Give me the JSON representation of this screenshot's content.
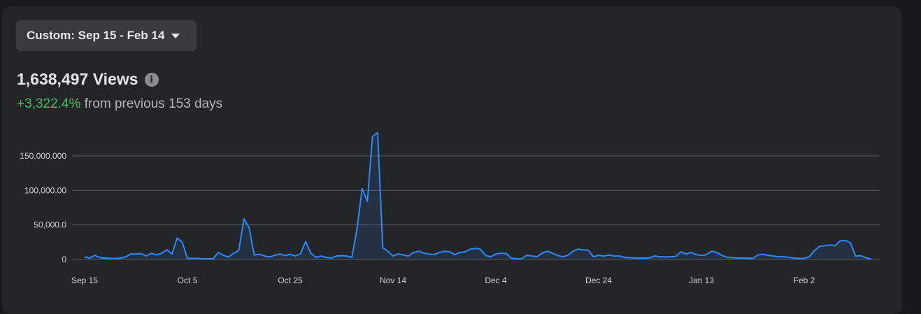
{
  "date_range": {
    "label": "Custom: Sep 15 - Feb 14"
  },
  "summary": {
    "views": "1,638,497 Views",
    "change_pct": "+3,322.4%",
    "change_text": "from previous 153 days"
  },
  "colors": {
    "line": "#2d88ff",
    "positive": "#45bd62"
  },
  "icons": {
    "info": "info-icon",
    "dropdown": "caret-down-icon"
  },
  "chart_data": {
    "type": "area",
    "title": "",
    "xlabel": "",
    "ylabel": "",
    "ylim": [
      0,
      175000
    ],
    "y_ticks": [
      {
        "value": 0,
        "label": "0"
      },
      {
        "value": 50000,
        "label": "50,000.0"
      },
      {
        "value": 100000,
        "label": "100,000.00"
      },
      {
        "value": 150000,
        "label": "150,000.000"
      }
    ],
    "x_ticks": [
      {
        "day": 0,
        "label": "Sep 15"
      },
      {
        "day": 20,
        "label": "Oct 5"
      },
      {
        "day": 40,
        "label": "Oct 25"
      },
      {
        "day": 60,
        "label": "Nov 14"
      },
      {
        "day": 80,
        "label": "Dec 4"
      },
      {
        "day": 100,
        "label": "Dec 24"
      },
      {
        "day": 120,
        "label": "Jan 13"
      },
      {
        "day": 140,
        "label": "Feb 2"
      }
    ],
    "grid": true,
    "series": [
      {
        "values": [
          4000,
          2000,
          6000,
          2500,
          2000,
          1500,
          1500,
          2000,
          4000,
          8000,
          8000,
          8500,
          5000,
          9000,
          6500,
          9000,
          14000,
          8000,
          31000,
          25000,
          1500,
          1500,
          1500,
          1000,
          1000,
          1000,
          10000,
          6000,
          3500,
          9000,
          13000,
          59000,
          46000,
          6500,
          7500,
          5000,
          3500,
          6000,
          8000,
          5500,
          7500,
          5000,
          8000,
          26000,
          9000,
          3000,
          5000,
          3000,
          2000,
          5000,
          5500,
          5000,
          3000,
          44000,
          103000,
          84000,
          178000,
          184000,
          17000,
          12000,
          5000,
          8000,
          6500,
          5000,
          10000,
          12000,
          9000,
          8000,
          7000,
          10000,
          12000,
          11000,
          7000,
          10000,
          11000,
          15000,
          16000,
          15000,
          6000,
          4000,
          8000,
          9000,
          8500,
          2000,
          1000,
          1000,
          6000,
          5000,
          4000,
          9000,
          12000,
          9000,
          6000,
          4000,
          6000,
          12000,
          15000,
          14000,
          13500,
          4000,
          6000,
          5000,
          6500,
          5000,
          5000,
          3000,
          2500,
          2000,
          2000,
          2000,
          2500,
          5000,
          4000,
          3500,
          4000,
          4500,
          11000,
          8000,
          10000,
          7000,
          6000,
          7000,
          12000,
          10000,
          6000,
          3000,
          2500,
          2000,
          2000,
          2000,
          1500,
          6500,
          7500,
          6000,
          5000,
          4000,
          4000,
          3000,
          2000,
          1500,
          1500,
          4000,
          13000,
          19000,
          20000,
          21000,
          20000,
          27000,
          27500,
          24000,
          5000,
          5500,
          2500,
          500
        ]
      }
    ]
  }
}
